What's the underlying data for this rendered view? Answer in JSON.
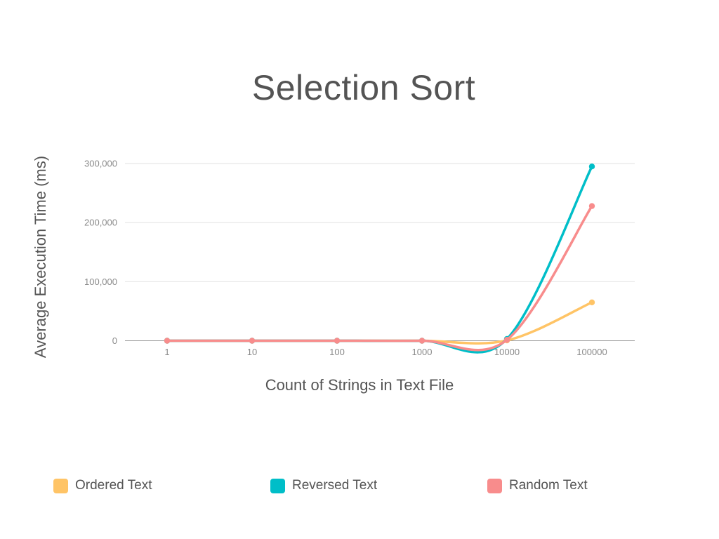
{
  "chart_data": {
    "type": "line",
    "title": "Selection Sort",
    "xlabel": "Count of Strings in Text File",
    "ylabel": "Average Execution Time (ms)",
    "categories": [
      "1",
      "10",
      "100",
      "1000",
      "10000",
      "100000"
    ],
    "y_ticks": [
      "0",
      "100,000",
      "200,000",
      "300,000"
    ],
    "ylim": [
      0,
      300000
    ],
    "grid": true,
    "legend_position": "bottom",
    "series": [
      {
        "name": "Ordered Text",
        "color": "#FFC466",
        "values": [
          0,
          0,
          0,
          0,
          500,
          65000
        ]
      },
      {
        "name": "Reversed Text",
        "color": "#00BEC8",
        "values": [
          0,
          0,
          0,
          0,
          3000,
          295000
        ]
      },
      {
        "name": "Random Text",
        "color": "#F88C8C",
        "values": [
          0,
          0,
          0,
          0,
          1500,
          228000
        ]
      }
    ]
  }
}
